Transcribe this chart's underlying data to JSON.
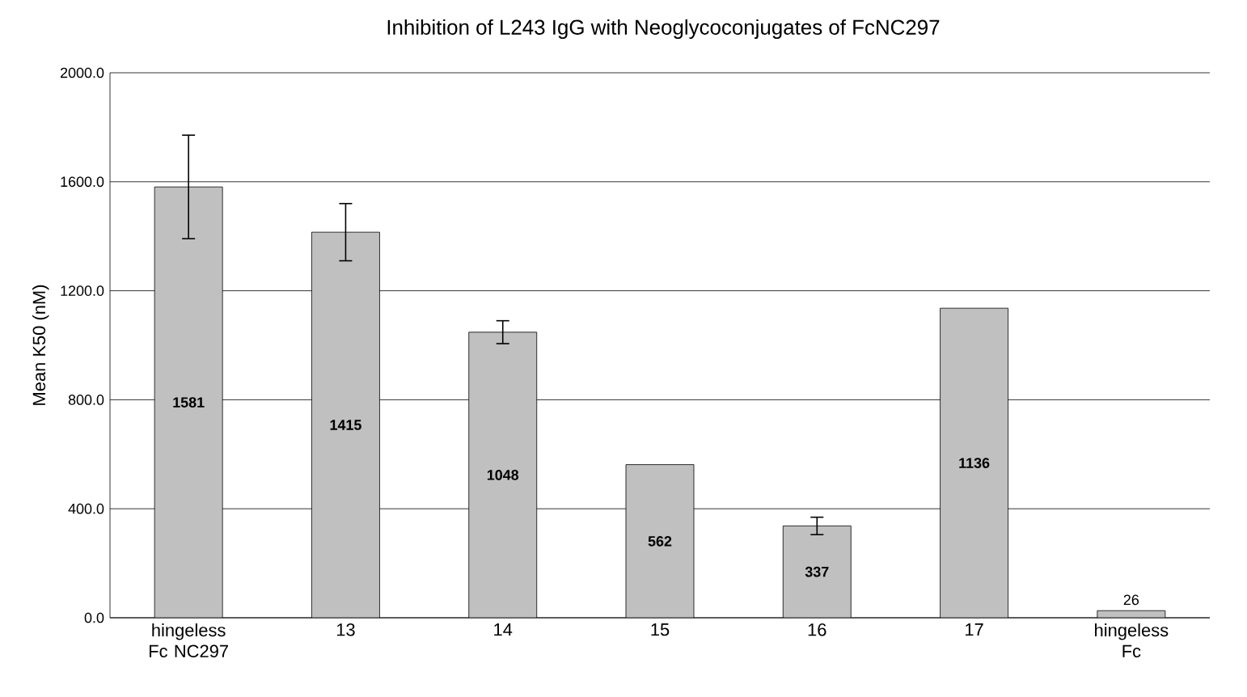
{
  "chart_data": {
    "type": "bar",
    "title": "Inhibition of L243 IgG with Neoglycoconjugates of FcNC297",
    "ylabel": "Mean K50 (nM)",
    "categories": [
      "hingeless Fc NC297",
      "13",
      "14",
      "15",
      "16",
      "17",
      "hingeless Fc"
    ],
    "values": [
      1581,
      1415,
      1048,
      562,
      337,
      1136,
      26
    ],
    "errors": [
      190,
      105,
      42,
      null,
      32,
      null,
      null
    ],
    "color": "#c0c0c0",
    "data_labels": true,
    "grid": "y",
    "ylim": [
      0,
      2000
    ],
    "yticks": [
      {
        "value": 0,
        "label": "0.0"
      },
      {
        "value": 400,
        "label": "400.0"
      },
      {
        "value": 800,
        "label": "800.0"
      },
      {
        "value": 1200,
        "label": "1200.0"
      },
      {
        "value": 1600,
        "label": "1600.0"
      },
      {
        "value": 2000,
        "label": "2000.0"
      }
    ]
  }
}
